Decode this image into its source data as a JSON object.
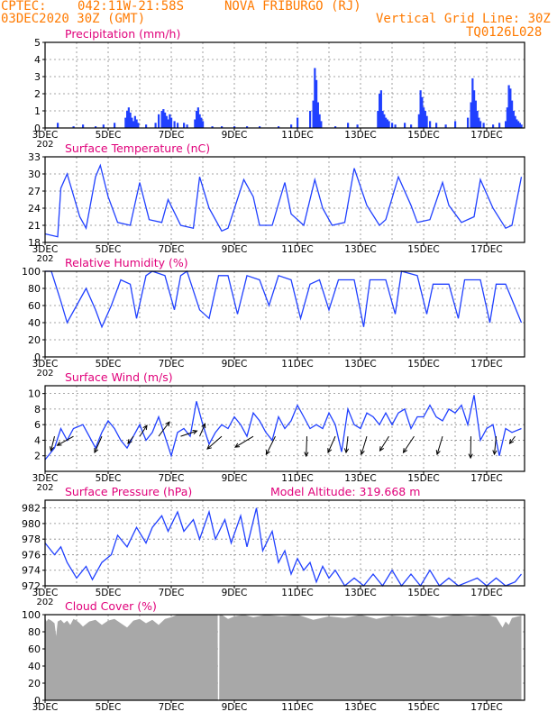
{
  "header": {
    "source": "CPTEC:",
    "location_coords": "042:11W-21:58S",
    "location_name": "NOVA FRIBURGO (RJ)",
    "run_date": "03DEC2020 30Z (GMT)",
    "grid_note": "Vertical Grid Line: 30Z",
    "model_code": "TQ0126L028"
  },
  "colors": {
    "header": "#ff7a00",
    "title": "#e0007a",
    "line": "#2040ff",
    "bar": "#2040ff",
    "cloud": "#a8a8a8",
    "grid": "#888888"
  },
  "x_axis": {
    "tick_labels": [
      "3DEC",
      "5DEC",
      "7DEC",
      "9DEC",
      "11DEC",
      "13DEC",
      "15DEC",
      "17DEC"
    ],
    "tick_days": [
      3,
      5,
      7,
      9,
      11,
      13,
      15,
      17
    ],
    "grid_days": [
      4,
      5,
      6,
      7,
      8,
      9,
      10,
      11,
      12,
      13,
      14,
      15,
      16,
      17
    ],
    "range_days": [
      3,
      18.2
    ],
    "year_fragment": "202"
  },
  "chart_data": [
    {
      "id": "precip",
      "type": "bar",
      "title": "Precipitation (mm/h)",
      "ylim": [
        0,
        5
      ],
      "yticks": [
        0,
        1,
        2,
        3,
        4,
        5
      ],
      "x_days": [
        3.4,
        3.9,
        4.2,
        4.6,
        4.85,
        5.2,
        5.55,
        5.6,
        5.65,
        5.7,
        5.75,
        5.8,
        5.85,
        5.9,
        5.95,
        6.2,
        6.5,
        6.6,
        6.7,
        6.75,
        6.8,
        6.85,
        6.9,
        6.95,
        7.0,
        7.1,
        7.2,
        7.4,
        7.5,
        7.75,
        7.8,
        7.85,
        7.9,
        7.95,
        8.0,
        8.3,
        8.6,
        9.0,
        9.4,
        9.8,
        10.4,
        10.8,
        11.0,
        11.4,
        11.5,
        11.55,
        11.6,
        11.65,
        11.7,
        11.75,
        12.2,
        12.6,
        12.9,
        13.55,
        13.6,
        13.65,
        13.7,
        13.75,
        13.8,
        13.85,
        13.9,
        14.0,
        14.1,
        14.4,
        14.6,
        14.85,
        14.9,
        14.95,
        15.0,
        15.05,
        15.1,
        15.2,
        15.4,
        15.7,
        16.0,
        16.4,
        16.5,
        16.55,
        16.6,
        16.65,
        16.7,
        16.75,
        16.8,
        16.9,
        17.2,
        17.4,
        17.6,
        17.65,
        17.7,
        17.75,
        17.8,
        17.85,
        17.9,
        17.95,
        18.0,
        18.05,
        18.1
      ],
      "values": [
        0.3,
        0.1,
        0.2,
        0.1,
        0.2,
        0.3,
        0.6,
        1.0,
        1.2,
        0.9,
        0.6,
        0.4,
        0.7,
        0.5,
        0.3,
        0.2,
        0.3,
        0.8,
        1.0,
        1.1,
        0.9,
        0.7,
        0.5,
        0.8,
        0.6,
        0.4,
        0.3,
        0.3,
        0.2,
        0.5,
        1.0,
        1.2,
        0.8,
        0.6,
        0.4,
        0.1,
        0.1,
        0.1,
        0.1,
        0.1,
        0.1,
        0.2,
        0.6,
        1.0,
        1.6,
        3.5,
        2.8,
        1.5,
        0.8,
        0.4,
        0.1,
        0.3,
        0.2,
        1.0,
        2.0,
        2.2,
        1.0,
        0.8,
        0.6,
        0.5,
        0.4,
        0.3,
        0.2,
        0.3,
        0.2,
        0.8,
        2.2,
        1.8,
        1.2,
        1.0,
        0.7,
        0.4,
        0.3,
        0.2,
        0.4,
        0.6,
        1.5,
        2.9,
        2.2,
        1.6,
        1.0,
        0.6,
        0.4,
        0.3,
        0.2,
        0.3,
        0.4,
        1.2,
        2.5,
        2.3,
        1.6,
        1.0,
        0.7,
        0.5,
        0.4,
        0.3,
        0.2
      ]
    },
    {
      "id": "temp",
      "type": "line",
      "title": "Surface Temperature (nC)",
      "ylim": [
        18,
        33
      ],
      "yticks": [
        18,
        21,
        24,
        27,
        30,
        33
      ],
      "x_days": [
        3.0,
        3.4,
        3.5,
        3.7,
        4.1,
        4.3,
        4.6,
        4.75,
        5.0,
        5.3,
        5.7,
        6.0,
        6.3,
        6.7,
        6.9,
        7.3,
        7.7,
        7.9,
        8.2,
        8.6,
        8.8,
        9.3,
        9.6,
        9.8,
        10.2,
        10.6,
        10.8,
        11.2,
        11.55,
        11.8,
        12.1,
        12.5,
        12.8,
        13.2,
        13.6,
        13.8,
        14.2,
        14.6,
        14.8,
        15.2,
        15.6,
        15.8,
        16.2,
        16.6,
        16.8,
        17.2,
        17.6,
        17.8,
        18.1
      ],
      "values": [
        19.5,
        19.0,
        27.5,
        30.0,
        22.5,
        20.5,
        29.5,
        31.5,
        26.0,
        21.5,
        21.0,
        28.5,
        22.0,
        21.5,
        25.5,
        21.0,
        20.5,
        29.5,
        24.0,
        20.0,
        20.5,
        29.0,
        26.0,
        21.0,
        21.0,
        28.5,
        23.0,
        21.0,
        29.0,
        24.0,
        21.0,
        21.5,
        31.0,
        24.5,
        21.0,
        22.0,
        29.5,
        24.5,
        21.5,
        22.0,
        28.5,
        24.5,
        21.5,
        22.5,
        29.0,
        24.0,
        20.5,
        21.0,
        29.5
      ]
    },
    {
      "id": "rh",
      "type": "line",
      "title": "Relative Humidity (%)",
      "ylim": [
        0,
        100
      ],
      "yticks": [
        0,
        20,
        40,
        60,
        80,
        100
      ],
      "x_days": [
        3.0,
        3.2,
        3.5,
        3.7,
        4.0,
        4.3,
        4.6,
        4.8,
        5.1,
        5.4,
        5.7,
        5.9,
        6.2,
        6.4,
        6.8,
        7.1,
        7.3,
        7.5,
        7.9,
        8.2,
        8.5,
        8.8,
        9.1,
        9.4,
        9.8,
        10.1,
        10.4,
        10.8,
        11.1,
        11.4,
        11.7,
        12.0,
        12.3,
        12.8,
        13.1,
        13.3,
        13.8,
        14.1,
        14.3,
        14.8,
        15.1,
        15.3,
        15.8,
        16.1,
        16.3,
        16.8,
        17.1,
        17.3,
        17.6,
        18.1
      ],
      "values": [
        100,
        100,
        65,
        40,
        60,
        80,
        55,
        35,
        60,
        90,
        85,
        45,
        95,
        100,
        95,
        55,
        95,
        100,
        55,
        45,
        95,
        95,
        50,
        95,
        90,
        60,
        95,
        90,
        45,
        85,
        90,
        55,
        90,
        90,
        35,
        90,
        90,
        50,
        100,
        95,
        50,
        85,
        85,
        45,
        90,
        90,
        40,
        85,
        85,
        40
      ]
    },
    {
      "id": "wind",
      "type": "line",
      "title": "Surface Wind (m/s)",
      "ylim": [
        0,
        11
      ],
      "yticks": [
        2,
        4,
        6,
        8,
        10
      ],
      "x_days": [
        3.0,
        3.3,
        3.5,
        3.7,
        3.9,
        4.2,
        4.4,
        4.6,
        4.8,
        5.0,
        5.2,
        5.4,
        5.6,
        5.8,
        6.0,
        6.2,
        6.4,
        6.6,
        6.8,
        7.0,
        7.2,
        7.4,
        7.6,
        7.8,
        8.0,
        8.2,
        8.4,
        8.6,
        8.8,
        9.0,
        9.2,
        9.4,
        9.6,
        9.8,
        10.0,
        10.2,
        10.4,
        10.6,
        10.8,
        11.0,
        11.2,
        11.4,
        11.6,
        11.8,
        12.0,
        12.2,
        12.4,
        12.6,
        12.8,
        13.0,
        13.2,
        13.4,
        13.6,
        13.8,
        14.0,
        14.2,
        14.4,
        14.6,
        14.8,
        15.0,
        15.2,
        15.4,
        15.6,
        15.8,
        16.0,
        16.2,
        16.4,
        16.6,
        16.8,
        17.0,
        17.2,
        17.4,
        17.6,
        17.8,
        18.1
      ],
      "values": [
        1.5,
        3.0,
        5.5,
        4.0,
        5.5,
        6.0,
        4.5,
        3.0,
        5.0,
        6.5,
        5.5,
        4.0,
        3.0,
        4.5,
        6.0,
        4.0,
        5.0,
        7.0,
        4.5,
        2.0,
        5.0,
        5.5,
        4.5,
        9.0,
        6.0,
        3.5,
        5.0,
        6.0,
        5.5,
        7.0,
        6.0,
        4.5,
        7.5,
        6.5,
        5.0,
        4.0,
        7.0,
        5.5,
        6.5,
        8.5,
        7.0,
        5.5,
        6.0,
        5.5,
        7.5,
        6.0,
        2.5,
        8.0,
        6.0,
        5.5,
        7.5,
        7.0,
        6.0,
        7.5,
        6.0,
        7.5,
        8.0,
        5.5,
        7.0,
        7.0,
        8.5,
        7.0,
        6.5,
        8.0,
        7.5,
        8.5,
        6.0,
        9.8,
        4.0,
        5.5,
        6.0,
        2.0,
        5.5,
        5.0,
        5.5
      ],
      "vectors": [
        {
          "day": 3.3,
          "u": 1.0,
          "v": 4.0
        },
        {
          "day": 3.9,
          "u": 4.5,
          "v": 2.5
        },
        {
          "day": 4.8,
          "u": 2.0,
          "v": 4.5
        },
        {
          "day": 5.8,
          "u": 1.5,
          "v": 2.0
        },
        {
          "day": 6.0,
          "u": -2.0,
          "v": -3.0
        },
        {
          "day": 6.6,
          "u": -3.0,
          "v": -4.0
        },
        {
          "day": 7.3,
          "u": -4.5,
          "v": -1.5
        },
        {
          "day": 7.9,
          "u": -1.5,
          "v": -3.5
        },
        {
          "day": 8.6,
          "u": 4.0,
          "v": 3.5
        },
        {
          "day": 9.6,
          "u": 5.0,
          "v": 3.0
        },
        {
          "day": 10.3,
          "u": 2.5,
          "v": 5.0
        },
        {
          "day": 11.3,
          "u": 0.2,
          "v": 5.5
        },
        {
          "day": 12.2,
          "u": 2.0,
          "v": 4.5
        },
        {
          "day": 12.6,
          "u": 0.5,
          "v": 4.5
        },
        {
          "day": 13.2,
          "u": 1.5,
          "v": 5.0
        },
        {
          "day": 13.9,
          "u": 2.5,
          "v": 4.0
        },
        {
          "day": 14.7,
          "u": 3.0,
          "v": 4.5
        },
        {
          "day": 15.6,
          "u": 1.5,
          "v": 5.0
        },
        {
          "day": 16.5,
          "u": 0.1,
          "v": 6.0
        },
        {
          "day": 17.3,
          "u": 0.5,
          "v": 5.0
        },
        {
          "day": 17.9,
          "u": 1.5,
          "v": 2.0
        }
      ]
    },
    {
      "id": "pressure",
      "type": "line",
      "title": "Surface Pressure (hPa)",
      "subtitle": "Model Altitude: 319.668 m",
      "ylim": [
        972,
        983
      ],
      "yticks": [
        972,
        974,
        976,
        978,
        980,
        982
      ],
      "x_days": [
        3.0,
        3.3,
        3.5,
        3.7,
        4.0,
        4.3,
        4.5,
        4.8,
        5.1,
        5.3,
        5.6,
        5.9,
        6.2,
        6.4,
        6.7,
        6.9,
        7.2,
        7.4,
        7.7,
        7.9,
        8.2,
        8.4,
        8.7,
        8.9,
        9.2,
        9.4,
        9.7,
        9.9,
        10.2,
        10.4,
        10.6,
        10.8,
        11.0,
        11.2,
        11.4,
        11.6,
        11.8,
        12.0,
        12.2,
        12.5,
        12.8,
        13.1,
        13.4,
        13.7,
        14.0,
        14.3,
        14.6,
        14.9,
        15.2,
        15.5,
        15.8,
        16.1,
        16.4,
        16.7,
        17.0,
        17.3,
        17.6,
        17.9,
        18.1
      ],
      "values": [
        977.5,
        976.0,
        977.0,
        975.0,
        973.0,
        974.5,
        972.8,
        975.0,
        976.0,
        978.5,
        977.0,
        979.5,
        977.5,
        979.5,
        981.0,
        979.0,
        981.5,
        979.0,
        980.5,
        978.0,
        981.5,
        978.0,
        980.5,
        977.5,
        981.0,
        977.0,
        982.0,
        976.5,
        979.0,
        975.0,
        976.5,
        973.5,
        975.5,
        974.0,
        975.0,
        972.5,
        974.5,
        973.0,
        974.0,
        972.0,
        973.0,
        972.0,
        973.5,
        972.0,
        974.0,
        972.0,
        973.5,
        972.0,
        974.0,
        972.0,
        973.0,
        971.5,
        972.5,
        973.0,
        972.0,
        973.0,
        971.5,
        972.5,
        973.5
      ]
    },
    {
      "id": "cloud",
      "type": "area",
      "title": "Cloud Cover (%)",
      "ylim": [
        0,
        100
      ],
      "yticks": [
        0,
        20,
        40,
        60,
        80,
        100
      ],
      "x_days": [
        3.0,
        3.05,
        3.1,
        3.2,
        3.3,
        3.35,
        3.4,
        3.5,
        3.6,
        3.7,
        3.8,
        3.9,
        4.0,
        4.1,
        4.2,
        4.4,
        4.6,
        4.8,
        5.0,
        5.2,
        5.4,
        5.6,
        5.8,
        6.0,
        6.2,
        6.4,
        6.6,
        6.8,
        7.0,
        7.2,
        7.4,
        7.6,
        7.8,
        8.0,
        8.2,
        8.4,
        8.47,
        8.48,
        8.52,
        8.53,
        8.6,
        8.8,
        9.0,
        9.3,
        9.6,
        10.0,
        10.5,
        11.0,
        11.5,
        12.0,
        12.5,
        13.0,
        13.5,
        14.0,
        14.5,
        15.0,
        15.5,
        16.0,
        16.5,
        17.0,
        17.3,
        17.5,
        17.6,
        17.7,
        17.8,
        18.0,
        18.1
      ],
      "values": [
        96,
        92,
        95,
        93,
        90,
        75,
        92,
        94,
        90,
        93,
        88,
        95,
        93,
        90,
        86,
        92,
        94,
        88,
        93,
        95,
        90,
        85,
        93,
        95,
        90,
        94,
        88,
        95,
        97,
        100,
        100,
        100,
        100,
        100,
        100,
        100,
        100,
        0,
        0,
        100,
        100,
        95,
        98,
        100,
        97,
        100,
        98,
        100,
        94,
        98,
        96,
        100,
        95,
        99,
        97,
        100,
        96,
        100,
        98,
        100,
        97,
        85,
        92,
        88,
        96,
        98,
        99
      ]
    }
  ]
}
